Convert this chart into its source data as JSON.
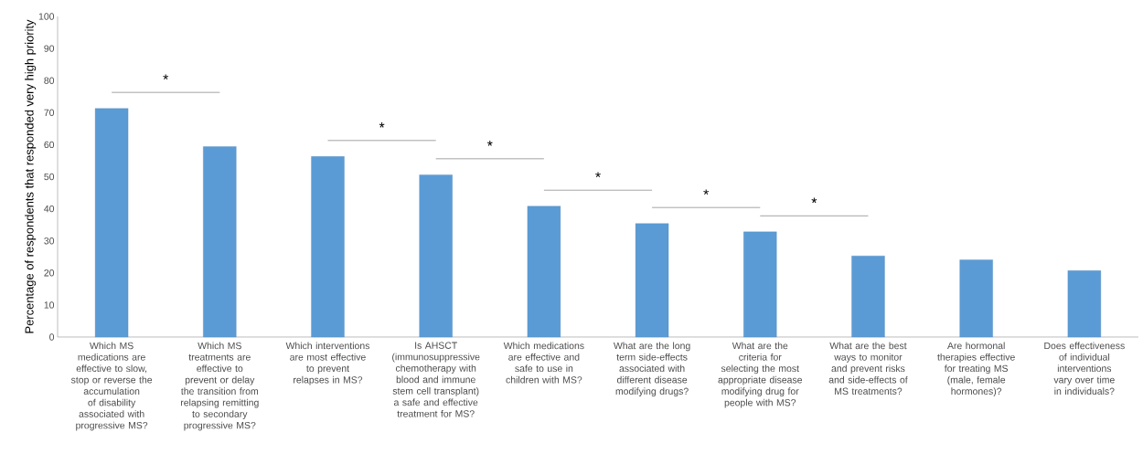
{
  "chart_data": {
    "type": "bar",
    "ylabel": "Percentage of respondents that responded very high priority",
    "categories": [
      "Which MS medications are effective to slow, stop or reverse the accumulation of disability associated with progressive MS?",
      "Which MS treatments are effective to prevent or delay the transition from relapsing remitting to secondary progressive MS?",
      "Which interventions are most effective to prevent relapses in MS?",
      "Is AHSCT (immunosuppressive chemotherapy with blood and immune stem cell transplant) a safe and effective treatment for MS?",
      "Which medications are effective and safe to use in children with MS?",
      "What are the long term side-effects associated with different disease modifying drugs?",
      "What are the criteria for selecting the most appropriate disease modifying drug for people with MS?",
      "What are the best ways to monitor and prevent risks and side-effects of MS treatments?",
      "Are hormonal therapies effective for treating MS (male, female hormones)?",
      "Does effectiveness of individual interventions vary over time in individuals?"
    ],
    "values": [
      71.3,
      59.4,
      56.3,
      50.6,
      40.8,
      35.4,
      32.8,
      25.3,
      24.1,
      20.7
    ],
    "color": "#5b9bd5",
    "ylim": [
      0,
      100
    ],
    "yticks": [
      0,
      10,
      20,
      30,
      40,
      50,
      60,
      70,
      80,
      90,
      100
    ],
    "annotations": [
      "*",
      "*",
      "*",
      "*",
      "*",
      "*"
    ]
  }
}
